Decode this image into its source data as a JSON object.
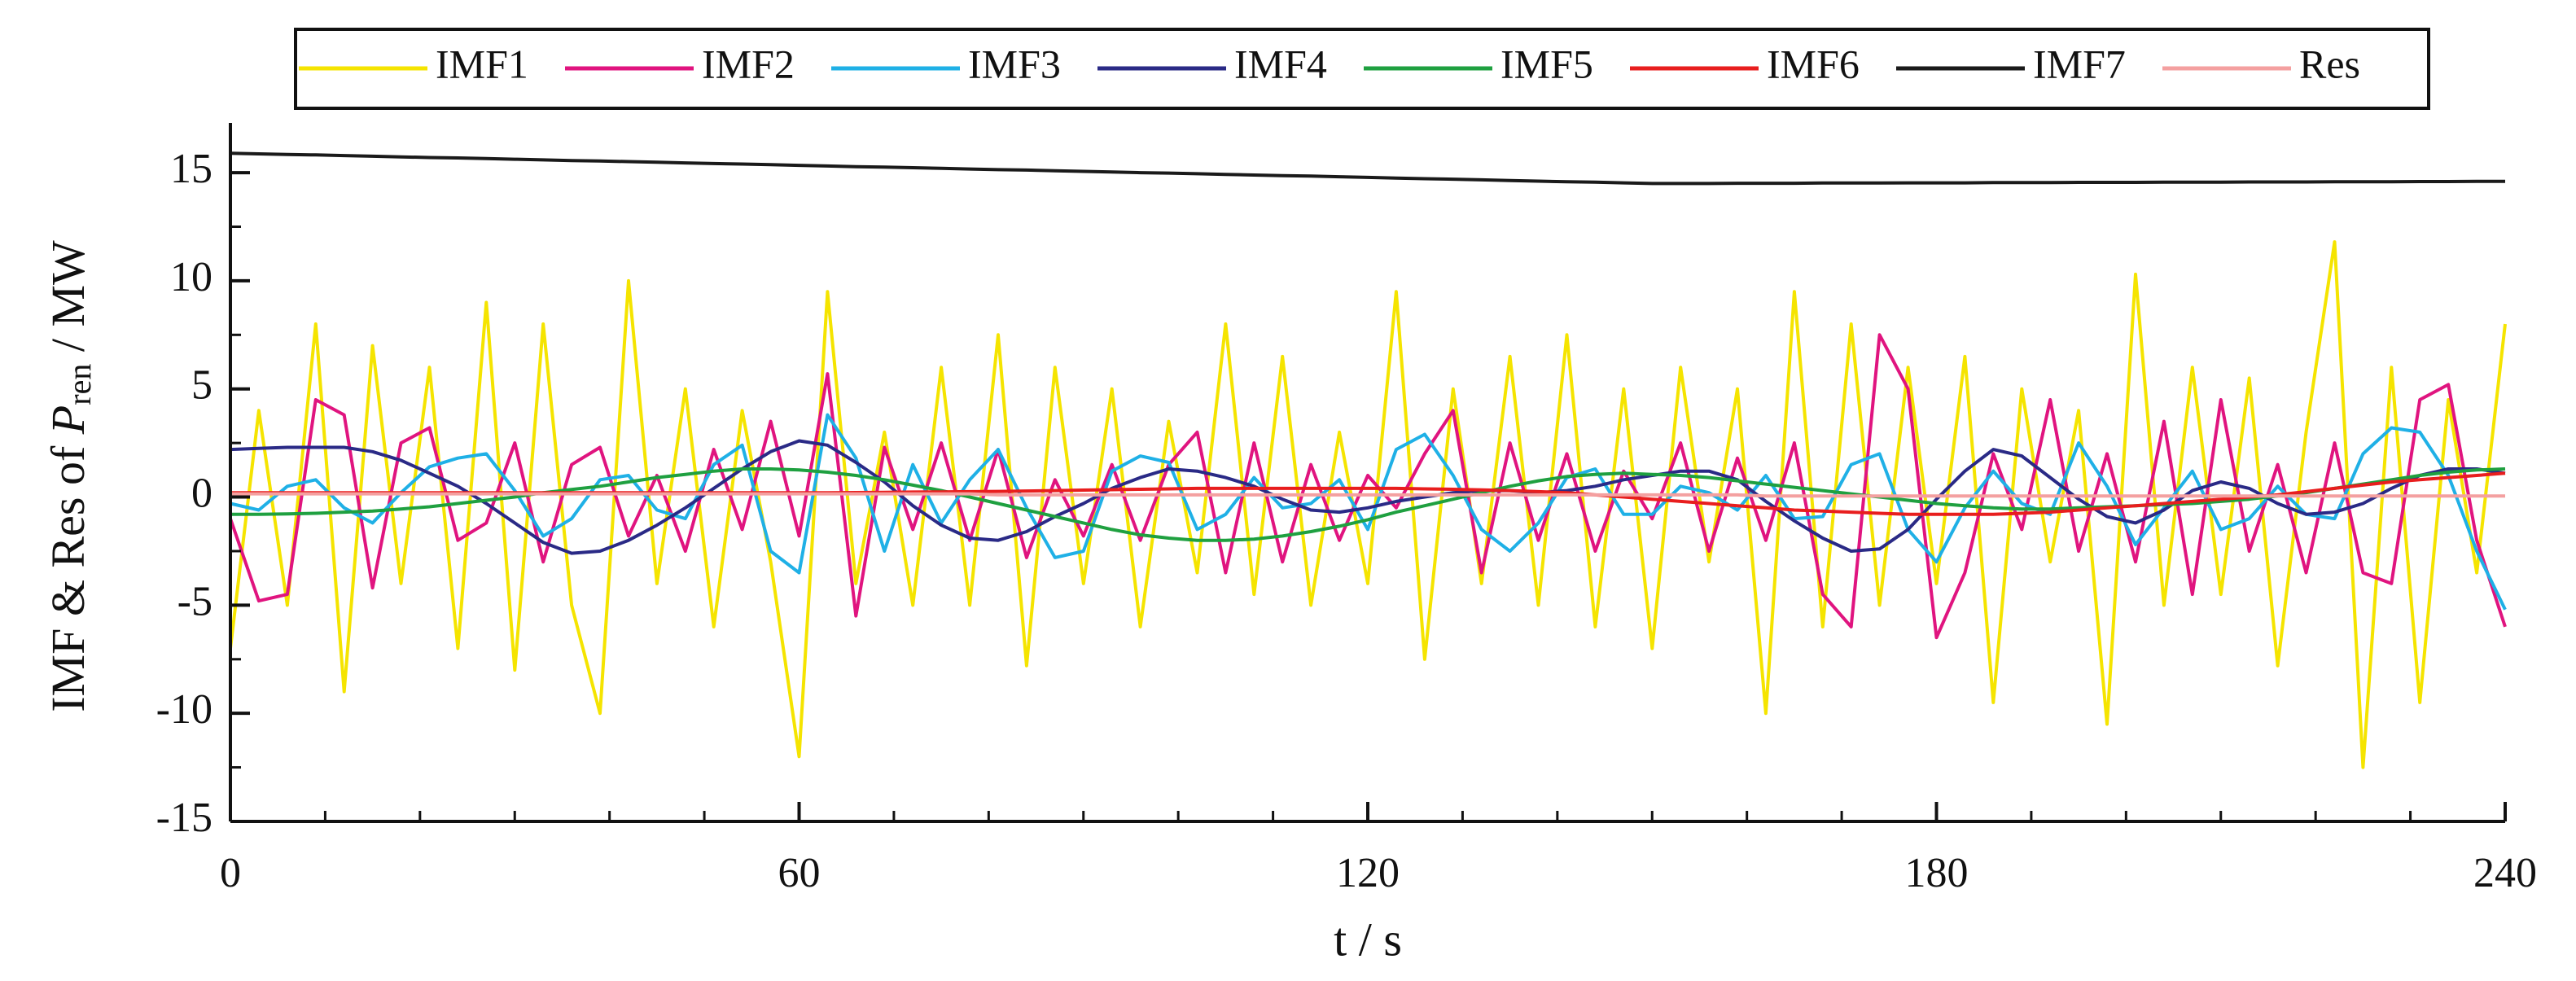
{
  "chart_data": {
    "type": "line",
    "ylabel": {
      "lead": "IMF & Res of ",
      "symbol": "P",
      "subscript": "ren",
      "unit": " / MW"
    },
    "xlabel": "t / s",
    "xlim": [
      0,
      240
    ],
    "xticks": [
      0,
      60,
      120,
      180,
      240
    ],
    "xminorticks": [
      10,
      20,
      30,
      40,
      50,
      70,
      80,
      90,
      100,
      110,
      130,
      140,
      150,
      160,
      170,
      190,
      200,
      210,
      220,
      230
    ],
    "ylim": [
      -15,
      17.3
    ],
    "yticks": [
      -15,
      -10,
      -5,
      0,
      5,
      10,
      15
    ],
    "yminorticks": [
      -12.5,
      -7.5,
      -2.5,
      2.5,
      7.5,
      12.5
    ],
    "legend": "top",
    "x": [
      0,
      3,
      6,
      9,
      12,
      15,
      18,
      21,
      24,
      27,
      30,
      33,
      36,
      39,
      42,
      45,
      48,
      51,
      54,
      57,
      60,
      63,
      66,
      69,
      72,
      75,
      78,
      81,
      84,
      87,
      90,
      93,
      96,
      99,
      102,
      105,
      108,
      111,
      114,
      117,
      120,
      123,
      126,
      129,
      132,
      135,
      138,
      141,
      144,
      147,
      150,
      153,
      156,
      159,
      162,
      165,
      168,
      171,
      174,
      177,
      180,
      183,
      186,
      189,
      192,
      195,
      198,
      201,
      204,
      207,
      210,
      213,
      216,
      219,
      222,
      225,
      228,
      231,
      234,
      237,
      240
    ],
    "series": [
      {
        "name": "IMF1",
        "color": "#f5e400",
        "values": [
          -7,
          4,
          -5,
          8,
          -9,
          7,
          -4,
          6,
          -7,
          9,
          -8,
          8,
          -5,
          -10,
          10,
          -4,
          5,
          -6,
          4,
          -3,
          -12,
          9.5,
          -4,
          3,
          -5,
          6,
          -5,
          7.5,
          -7.8,
          6,
          -4,
          5,
          -6,
          3.5,
          -3.5,
          8,
          -4.5,
          6.5,
          -5,
          3,
          -4,
          9.5,
          -7.5,
          5,
          -4,
          6.5,
          -5,
          7.5,
          -6,
          5,
          -7,
          6,
          -3,
          5,
          -10,
          9.5,
          -6,
          8,
          -5,
          6,
          -4,
          6.5,
          -9.5,
          5,
          -3,
          4,
          -10.5,
          10.3,
          -5,
          6,
          -4.5,
          5.5,
          -7.8,
          3,
          11.8,
          -12.5,
          6,
          -9.5,
          4.5,
          -3.5,
          8
        ]
      },
      {
        "name": "IMF2",
        "color": "#e0147f",
        "values": [
          -1,
          -4.8,
          -4.5,
          4.5,
          3.8,
          -4.2,
          2.5,
          3.2,
          -2,
          -1.2,
          2.5,
          -3,
          1.5,
          2.3,
          -1.8,
          1,
          -2.5,
          2.2,
          -1.5,
          3.5,
          -1.8,
          5.7,
          -5.5,
          2.3,
          -1.5,
          2.5,
          -2,
          2.2,
          -2.8,
          0.8,
          -1.8,
          1.5,
          -2,
          1.5,
          3,
          -3.5,
          2.5,
          -3,
          1.5,
          -2,
          1,
          -0.5,
          2,
          4,
          -3.5,
          2.5,
          -2,
          2,
          -2.5,
          1.2,
          -1,
          2.5,
          -2.5,
          1.8,
          -2,
          2.5,
          -4.5,
          -6,
          7.5,
          5,
          -6.5,
          -3.5,
          2,
          -1.5,
          4.5,
          -2.5,
          2,
          -3,
          3.5,
          -4.5,
          4.5,
          -2.5,
          1.5,
          -3.5,
          2.5,
          -3.5,
          -4,
          4.5,
          5.2,
          -2,
          -6
        ]
      },
      {
        "name": "IMF3",
        "color": "#1fb0e6",
        "values": [
          -0.3,
          -0.6,
          0.5,
          0.8,
          -0.5,
          -1.2,
          0.2,
          1.4,
          1.8,
          2,
          0.3,
          -1.8,
          -1,
          0.8,
          1,
          -0.6,
          -1,
          1.5,
          2.4,
          -2.5,
          -3.5,
          3.8,
          1.8,
          -2.5,
          1.5,
          -1.2,
          0.8,
          2.2,
          -0.5,
          -2.8,
          -2.5,
          1.2,
          1.9,
          1.6,
          -1.5,
          -0.8,
          0.9,
          -0.5,
          -0.3,
          0.8,
          -1.5,
          2.2,
          2.9,
          1,
          -1.5,
          -2.5,
          -1.2,
          0.9,
          1.3,
          -0.8,
          -0.8,
          0.5,
          0.2,
          -0.6,
          1,
          -1,
          -0.9,
          1.5,
          2,
          -1.5,
          -3,
          -0.5,
          1.2,
          -0.3,
          -0.8,
          2.5,
          0.5,
          -2.2,
          -0.5,
          1.2,
          -1.5,
          -1,
          0.5,
          -0.8,
          -1,
          2,
          3.2,
          3,
          1,
          -2.5,
          -5.2
        ]
      },
      {
        "name": "IMF4",
        "color": "#2a2a86",
        "values": [
          2.2,
          2.25,
          2.3,
          2.3,
          2.3,
          2.1,
          1.7,
          1.1,
          0.5,
          -0.3,
          -1.2,
          -2.1,
          -2.6,
          -2.5,
          -2,
          -1.3,
          -0.5,
          0.4,
          1.3,
          2.1,
          2.6,
          2.4,
          1.6,
          0.7,
          -0.4,
          -1.3,
          -1.9,
          -2,
          -1.6,
          -0.9,
          -0.3,
          0.4,
          0.9,
          1.3,
          1.2,
          0.9,
          0.5,
          -0.1,
          -0.6,
          -0.7,
          -0.5,
          -0.2,
          0,
          0.2,
          0.3,
          0.3,
          0.2,
          0.3,
          0.5,
          0.8,
          1,
          1.2,
          1.2,
          0.8,
          -0.2,
          -1.1,
          -1.9,
          -2.5,
          -2.4,
          -1.5,
          -0.1,
          1.2,
          2.2,
          1.9,
          0.9,
          -0.1,
          -0.9,
          -1.2,
          -0.6,
          0.3,
          0.7,
          0.4,
          -0.3,
          -0.8,
          -0.7,
          -0.3,
          0.4,
          1,
          1.3,
          1.3,
          1.1
        ]
      },
      {
        "name": "IMF5",
        "color": "#1fa040",
        "values": [
          -0.8,
          -0.8,
          -0.78,
          -0.75,
          -0.7,
          -0.65,
          -0.55,
          -0.45,
          -0.3,
          -0.15,
          0,
          0.2,
          0.35,
          0.5,
          0.7,
          0.9,
          1.05,
          1.2,
          1.3,
          1.3,
          1.25,
          1.15,
          1,
          0.8,
          0.55,
          0.3,
          0,
          -0.3,
          -0.6,
          -0.9,
          -1.2,
          -1.5,
          -1.75,
          -1.9,
          -2,
          -2,
          -1.95,
          -1.8,
          -1.6,
          -1.35,
          -1.05,
          -0.7,
          -0.4,
          -0.1,
          0.2,
          0.5,
          0.75,
          0.95,
          1.05,
          1.1,
          1.05,
          1,
          0.9,
          0.75,
          0.6,
          0.45,
          0.3,
          0.15,
          0,
          -0.15,
          -0.3,
          -0.4,
          -0.5,
          -0.55,
          -0.55,
          -0.5,
          -0.45,
          -0.4,
          -0.35,
          -0.3,
          -0.2,
          -0.1,
          0.05,
          0.2,
          0.4,
          0.6,
          0.8,
          1,
          1.15,
          1.25,
          1.3
        ]
      },
      {
        "name": "IMF6",
        "color": "#e81e1e",
        "values": [
          0.2,
          0.2,
          0.2,
          0.2,
          0.2,
          0.2,
          0.2,
          0.2,
          0.2,
          0.2,
          0.2,
          0.2,
          0.2,
          0.2,
          0.2,
          0.2,
          0.2,
          0.2,
          0.2,
          0.2,
          0.2,
          0.2,
          0.21,
          0.22,
          0.23,
          0.24,
          0.25,
          0.26,
          0.28,
          0.3,
          0.32,
          0.34,
          0.36,
          0.38,
          0.4,
          0.4,
          0.4,
          0.4,
          0.4,
          0.4,
          0.4,
          0.4,
          0.38,
          0.36,
          0.33,
          0.3,
          0.25,
          0.2,
          0.1,
          0,
          -0.1,
          -0.2,
          -0.3,
          -0.4,
          -0.5,
          -0.6,
          -0.65,
          -0.7,
          -0.75,
          -0.8,
          -0.8,
          -0.8,
          -0.8,
          -0.75,
          -0.7,
          -0.6,
          -0.5,
          -0.4,
          -0.3,
          -0.2,
          -0.1,
          0,
          0.1,
          0.25,
          0.4,
          0.55,
          0.7,
          0.8,
          0.9,
          1,
          1.1
        ]
      },
      {
        "name": "IMF7",
        "color": "#1a1a1a",
        "values": [
          15.9,
          15.87,
          15.84,
          15.82,
          15.79,
          15.76,
          15.73,
          15.7,
          15.68,
          15.65,
          15.62,
          15.59,
          15.56,
          15.54,
          15.51,
          15.48,
          15.45,
          15.42,
          15.4,
          15.37,
          15.34,
          15.31,
          15.28,
          15.26,
          15.23,
          15.2,
          15.17,
          15.14,
          15.12,
          15.09,
          15.06,
          15.03,
          15,
          14.98,
          14.95,
          14.92,
          14.89,
          14.86,
          14.84,
          14.81,
          14.78,
          14.75,
          14.72,
          14.7,
          14.67,
          14.64,
          14.61,
          14.58,
          14.56,
          14.53,
          14.5,
          14.5,
          14.5,
          14.51,
          14.51,
          14.51,
          14.52,
          14.52,
          14.52,
          14.53,
          14.53,
          14.53,
          14.54,
          14.54,
          14.54,
          14.55,
          14.55,
          14.55,
          14.56,
          14.56,
          14.56,
          14.57,
          14.57,
          14.57,
          14.58,
          14.58,
          14.58,
          14.59,
          14.59,
          14.6,
          14.6
        ]
      },
      {
        "name": "Res",
        "color": "#f4a0a0",
        "values": [
          0.15,
          0.15,
          0.15,
          0.15,
          0.15,
          0.15,
          0.15,
          0.15,
          0.15,
          0.15,
          0.15,
          0.15,
          0.15,
          0.15,
          0.15,
          0.15,
          0.15,
          0.15,
          0.15,
          0.15,
          0.15,
          0.15,
          0.15,
          0.15,
          0.15,
          0.15,
          0.15,
          0.1,
          0.1,
          0.1,
          0.1,
          0.1,
          0.1,
          0.1,
          0.1,
          0.1,
          0.1,
          0.1,
          0.1,
          0.1,
          0.1,
          0.1,
          0.1,
          0.1,
          0.1,
          0.1,
          0.1,
          0.1,
          0.1,
          0.1,
          0.1,
          0.1,
          0.1,
          0.1,
          0.05,
          0.05,
          0.05,
          0.05,
          0.05,
          0.05,
          0.05,
          0.05,
          0.05,
          0.05,
          0.05,
          0.05,
          0.05,
          0.05,
          0.05,
          0.05,
          0.05,
          0.05,
          0.05,
          0.05,
          0.05,
          0.05,
          0.05,
          0.05,
          0.05,
          0.05,
          0.05
        ]
      }
    ]
  }
}
